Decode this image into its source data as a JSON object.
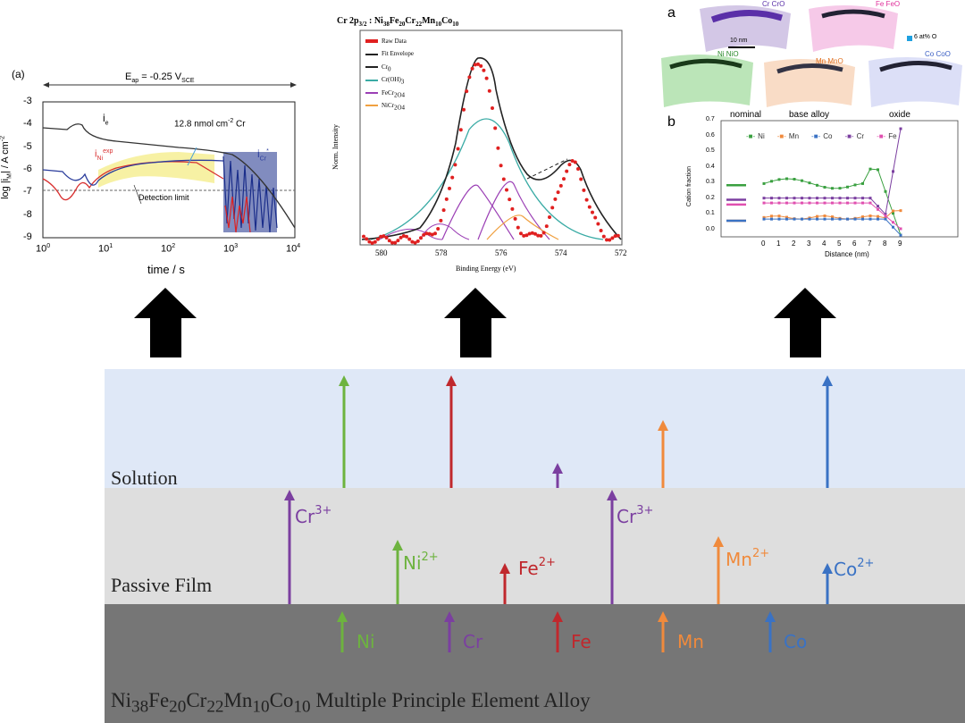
{
  "layers": {
    "solution": "Solution",
    "passive_film": "Passive Film",
    "alloy": {
      "base": "Ni",
      "n1": "38",
      "e2": "Fe",
      "n2": "20",
      "e3": "Cr",
      "n3": "22",
      "e4": "Mn",
      "n4": "10",
      "e5": "Co",
      "n5": "10",
      "suffix": " Multiple Principle Element Alloy"
    }
  },
  "alloy_elements": [
    {
      "label": "Ni",
      "color": "#6db33f"
    },
    {
      "label": "Cr",
      "color": "#7b3fa0"
    },
    {
      "label": "Fe",
      "color": "#c0282d"
    },
    {
      "label": "Mn",
      "color": "#f08a3c"
    },
    {
      "label": "Co",
      "color": "#3a72c4"
    }
  ],
  "film_ions": [
    {
      "el": "Cr",
      "charge": "3+",
      "color": "#7b3fa0"
    },
    {
      "el": "Ni",
      "charge": "2+",
      "color": "#6db33f"
    },
    {
      "el": "Fe",
      "charge": "2+",
      "color": "#c0282d"
    },
    {
      "el": "Cr",
      "charge": "3+",
      "color": "#7b3fa0"
    },
    {
      "el": "Mn",
      "charge": "2+",
      "color": "#f08a3c"
    },
    {
      "el": "Co",
      "charge": "2+",
      "color": "#3a72c4"
    }
  ],
  "panel_left": {
    "tag": "(a)",
    "potential_main": "E",
    "potential_sub": "ap",
    "potential_rest": " = -0.25 V",
    "potential_unit_sub": "SCE",
    "ylabel": "log |i",
    "ylabel_sub": "M",
    "ylabel_rest": "| / A cm",
    "ylabel_sup": "-2",
    "xlabel": "time / s",
    "yticks": [
      "-3",
      "-4",
      "-5",
      "-6",
      "-7",
      "-8",
      "-9"
    ],
    "xticks": [
      "10",
      "10",
      "10",
      "10",
      "10"
    ],
    "xtick_sups": [
      "0",
      "1",
      "2",
      "3",
      "4"
    ],
    "ie_label": "i",
    "ie_sub": "e",
    "ini_label": "i",
    "ini_sub": "Ni",
    "ini_sup": "exp",
    "icr_label": "i",
    "icr_sub": "Cr",
    "icr_sup": "*",
    "annotation": "12.8 nmol cm",
    "annotation_sup": "-2",
    "annotation_rest": " Cr",
    "detection": "Detection limit"
  },
  "panel_mid": {
    "title_a": "Cr 2p",
    "title_sub": "3/2",
    "title_b": " : Ni",
    "title_c": "Fe",
    "title_d": "Cr",
    "title_e": "Mn",
    "title_f": "Co",
    "title_n1": "38",
    "title_n2": "20",
    "title_n3": "22",
    "title_n4": "10",
    "title_n5": "10",
    "legend": [
      "Raw Data",
      "Fit Envelope",
      "Cr",
      "Cr(OH)",
      "FeCr",
      "NiCr"
    ],
    "legend_suffix": [
      "",
      "",
      "0",
      "3",
      "2O4",
      "2O4"
    ],
    "ylabel": "Norm. Intensity",
    "xlabel": "Binding Energy (eV)",
    "xticks": [
      "580",
      "578",
      "576",
      "574",
      "572"
    ]
  },
  "panel_right": {
    "tag_a": "a",
    "tag_b": "b",
    "apt_labels": [
      "Cr CrO",
      "Fe FeO",
      "Ni NiO",
      "Mn MnO",
      "Co CoO"
    ],
    "scale": "10 nm",
    "iso": "6 at% O",
    "region_labels": [
      "nominal",
      "base alloy",
      "oxide"
    ],
    "legend": [
      "Ni",
      "Mn",
      "Co",
      "Cr",
      "Fe"
    ],
    "ylabel": "Cation fraction",
    "xlabel": "Distance (nm)",
    "yticks": [
      "0.7",
      "0.6",
      "0.5",
      "0.4",
      "0.3",
      "0.2",
      "0.1",
      "0.0"
    ],
    "xticks": [
      "0",
      "1",
      "2",
      "3",
      "4",
      "5",
      "6",
      "7",
      "8",
      "9"
    ]
  },
  "colors": {
    "solution_bg": "#dfe8f7",
    "film_bg": "#dedede",
    "alloy_bg": "#767676",
    "arrow": "#000000"
  }
}
